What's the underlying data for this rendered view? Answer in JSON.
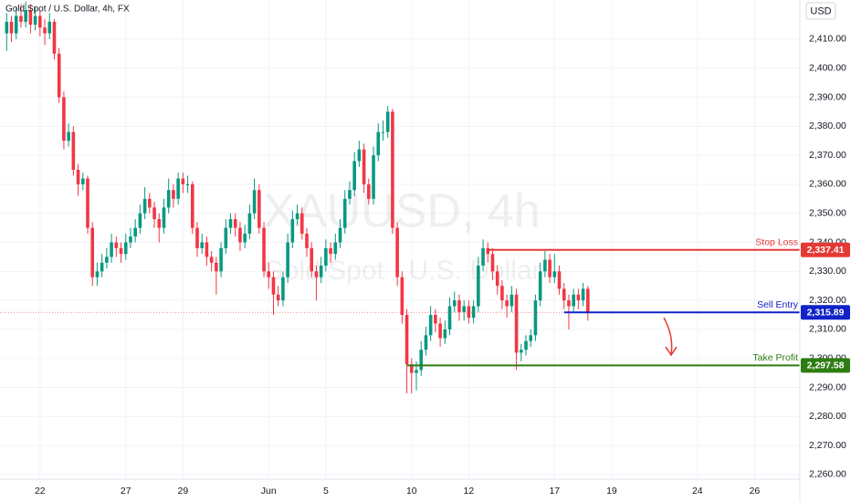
{
  "chart_data": {
    "type": "candlestick",
    "title": "Gold Spot / U.S. Dollar, 4h, FX",
    "currency": "USD",
    "watermark": "XAUUSD, 4h",
    "watermark_subtitle": "Gold Spot · U.S. Dollar",
    "up_color": "#089981",
    "down_color": "#f23645",
    "ylim": [
      2258.4,
      2423.5
    ],
    "yticks": [
      {
        "value": 2260,
        "label": "2,260.00"
      },
      {
        "value": 2270,
        "label": "2,270.00"
      },
      {
        "value": 2280,
        "label": "2,280.00"
      },
      {
        "value": 2290,
        "label": "2,290.00"
      },
      {
        "value": 2300,
        "label": "2,300.00"
      },
      {
        "value": 2310,
        "label": "2,310.00"
      },
      {
        "value": 2320,
        "label": "2,320.00"
      },
      {
        "value": 2330,
        "label": "2,330.00"
      },
      {
        "value": 2340,
        "label": "2,340.00"
      },
      {
        "value": 2350,
        "label": "2,350.00"
      },
      {
        "value": 2360,
        "label": "2,360.00"
      },
      {
        "value": 2370,
        "label": "2,370.00"
      },
      {
        "value": 2380,
        "label": "2,380.00"
      },
      {
        "value": 2390,
        "label": "2,390.00"
      },
      {
        "value": 2400,
        "label": "2,400.00"
      },
      {
        "value": 2410,
        "label": "2,410.00"
      }
    ],
    "xlim": [
      -1.4,
      166.5
    ],
    "xticks": [
      {
        "value": 7,
        "label": "22"
      },
      {
        "value": 25,
        "label": "27"
      },
      {
        "value": 37,
        "label": "29"
      },
      {
        "value": 55,
        "label": "Jun"
      },
      {
        "value": 67,
        "label": "5"
      },
      {
        "value": 85,
        "label": "10"
      },
      {
        "value": 97,
        "label": "12"
      },
      {
        "value": 115,
        "label": "17"
      },
      {
        "value": 127,
        "label": "19"
      },
      {
        "value": 145,
        "label": "24"
      },
      {
        "value": 157,
        "label": "26"
      }
    ],
    "levels": [
      {
        "name": "Stop Loss",
        "value": 2337.41,
        "value_label": "2,337.41",
        "color": "#e53935"
      },
      {
        "name": "Sell Entry",
        "value": 2315.89,
        "value_label": "2,315.89",
        "color": "#1022c8"
      },
      {
        "name": "Take Profit",
        "value": 2297.58,
        "value_label": "2,297.58",
        "color": "#2e7d12"
      }
    ],
    "ohlc": [
      [
        2412,
        2419,
        2406,
        2416
      ],
      [
        2416,
        2418,
        2409,
        2412
      ],
      [
        2412,
        2421,
        2410,
        2418
      ],
      [
        2418,
        2422,
        2414,
        2416
      ],
      [
        2416,
        2423,
        2414,
        2420
      ],
      [
        2420,
        2422,
        2412,
        2415
      ],
      [
        2415,
        2421,
        2413,
        2418
      ],
      [
        2418,
        2420,
        2411,
        2414
      ],
      [
        2414,
        2417,
        2408,
        2412
      ],
      [
        2412,
        2419,
        2410,
        2416
      ],
      [
        2416,
        2417,
        2403,
        2405
      ],
      [
        2405,
        2407,
        2388,
        2390
      ],
      [
        2390,
        2392,
        2372,
        2375
      ],
      [
        2375,
        2381,
        2373,
        2378
      ],
      [
        2378,
        2380,
        2363,
        2365
      ],
      [
        2365,
        2367,
        2356,
        2360
      ],
      [
        2360,
        2364,
        2358,
        2362
      ],
      [
        2362,
        2363,
        2343,
        2345
      ],
      [
        2345,
        2347,
        2325,
        2328
      ],
      [
        2328,
        2333,
        2325,
        2330
      ],
      [
        2330,
        2336,
        2328,
        2333
      ],
      [
        2333,
        2338,
        2331,
        2335
      ],
      [
        2335,
        2343,
        2333,
        2340
      ],
      [
        2340,
        2342,
        2335,
        2338
      ],
      [
        2338,
        2340,
        2333,
        2336
      ],
      [
        2336,
        2343,
        2334,
        2340
      ],
      [
        2340,
        2345,
        2338,
        2342
      ],
      [
        2342,
        2348,
        2340,
        2345
      ],
      [
        2345,
        2353,
        2343,
        2350
      ],
      [
        2350,
        2359,
        2348,
        2355
      ],
      [
        2355,
        2357,
        2350,
        2352
      ],
      [
        2352,
        2354,
        2345,
        2348
      ],
      [
        2348,
        2350,
        2340,
        2345
      ],
      [
        2345,
        2355,
        2343,
        2352
      ],
      [
        2352,
        2362,
        2350,
        2358
      ],
      [
        2358,
        2360,
        2352,
        2355
      ],
      [
        2355,
        2364,
        2353,
        2362
      ],
      [
        2362,
        2364,
        2357,
        2360
      ],
      [
        2360,
        2363,
        2357,
        2360
      ],
      [
        2360,
        2361,
        2343,
        2345
      ],
      [
        2345,
        2347,
        2335,
        2338
      ],
      [
        2338,
        2343,
        2336,
        2340
      ],
      [
        2340,
        2342,
        2332,
        2335
      ],
      [
        2335,
        2337,
        2330,
        2333
      ],
      [
        2333,
        2335,
        2322,
        2330
      ],
      [
        2330,
        2340,
        2328,
        2338
      ],
      [
        2338,
        2348,
        2336,
        2345
      ],
      [
        2345,
        2350,
        2343,
        2348
      ],
      [
        2348,
        2350,
        2342,
        2345
      ],
      [
        2345,
        2347,
        2337,
        2340
      ],
      [
        2340,
        2346,
        2338,
        2343
      ],
      [
        2343,
        2353,
        2341,
        2350
      ],
      [
        2350,
        2362,
        2348,
        2358
      ],
      [
        2358,
        2360,
        2343,
        2345
      ],
      [
        2345,
        2347,
        2328,
        2330
      ],
      [
        2330,
        2333,
        2324,
        2328
      ],
      [
        2328,
        2330,
        2315,
        2322
      ],
      [
        2322,
        2325,
        2318,
        2320
      ],
      [
        2320,
        2330,
        2318,
        2328
      ],
      [
        2328,
        2343,
        2326,
        2340
      ],
      [
        2340,
        2351,
        2338,
        2348
      ],
      [
        2348,
        2353,
        2346,
        2350
      ],
      [
        2350,
        2352,
        2341,
        2343
      ],
      [
        2343,
        2345,
        2335,
        2338
      ],
      [
        2338,
        2340,
        2328,
        2330
      ],
      [
        2330,
        2332,
        2320,
        2328
      ],
      [
        2328,
        2335,
        2326,
        2332
      ],
      [
        2332,
        2341,
        2330,
        2338
      ],
      [
        2338,
        2340,
        2333,
        2336
      ],
      [
        2336,
        2343,
        2334,
        2340
      ],
      [
        2340,
        2348,
        2338,
        2345
      ],
      [
        2345,
        2358,
        2343,
        2355
      ],
      [
        2355,
        2361,
        2353,
        2358
      ],
      [
        2358,
        2371,
        2356,
        2368
      ],
      [
        2368,
        2375,
        2366,
        2372
      ],
      [
        2372,
        2374,
        2357,
        2360
      ],
      [
        2360,
        2362,
        2353,
        2355
      ],
      [
        2355,
        2373,
        2353,
        2370
      ],
      [
        2370,
        2381,
        2368,
        2378
      ],
      [
        2378,
        2382,
        2375,
        2378
      ],
      [
        2378,
        2387,
        2376,
        2385
      ],
      [
        2385,
        2386,
        2343,
        2345
      ],
      [
        2345,
        2347,
        2325,
        2328
      ],
      [
        2328,
        2330,
        2312,
        2315
      ],
      [
        2315,
        2317,
        2288,
        2298
      ],
      [
        2298,
        2300,
        2288,
        2295
      ],
      [
        2295,
        2299,
        2289,
        2296
      ],
      [
        2296,
        2306,
        2294,
        2303
      ],
      [
        2303,
        2311,
        2301,
        2308
      ],
      [
        2308,
        2318,
        2306,
        2315
      ],
      [
        2315,
        2317,
        2309,
        2312
      ],
      [
        2312,
        2314,
        2304,
        2307
      ],
      [
        2307,
        2313,
        2305,
        2310
      ],
      [
        2310,
        2321,
        2308,
        2318
      ],
      [
        2318,
        2323,
        2316,
        2320
      ],
      [
        2320,
        2322,
        2313,
        2316
      ],
      [
        2316,
        2320,
        2313,
        2318
      ],
      [
        2318,
        2320,
        2312,
        2314
      ],
      [
        2314,
        2320,
        2312,
        2318
      ],
      [
        2318,
        2335,
        2316,
        2332
      ],
      [
        2332,
        2341,
        2330,
        2338
      ],
      [
        2338,
        2340,
        2333,
        2336
      ],
      [
        2336,
        2338,
        2327,
        2330
      ],
      [
        2330,
        2332,
        2322,
        2325
      ],
      [
        2325,
        2327,
        2317,
        2320
      ],
      [
        2320,
        2322,
        2314,
        2318
      ],
      [
        2318,
        2325,
        2316,
        2322
      ],
      [
        2322,
        2324,
        2296,
        2302
      ],
      [
        2302,
        2305,
        2299,
        2303
      ],
      [
        2303,
        2308,
        2301,
        2306
      ],
      [
        2306,
        2310,
        2304,
        2308
      ],
      [
        2308,
        2322,
        2306,
        2320
      ],
      [
        2320,
        2333,
        2318,
        2330
      ],
      [
        2330,
        2337,
        2328,
        2334
      ],
      [
        2334,
        2336,
        2326,
        2328
      ],
      [
        2328,
        2336,
        2326,
        2330
      ],
      [
        2330,
        2332,
        2322,
        2324
      ],
      [
        2324,
        2326,
        2317,
        2320
      ],
      [
        2320,
        2322,
        2310,
        2318
      ],
      [
        2318,
        2324,
        2316,
        2322
      ],
      [
        2322,
        2324,
        2317,
        2320
      ],
      [
        2320,
        2326,
        2318,
        2324
      ],
      [
        2324,
        2325,
        2313,
        2315.89
      ]
    ]
  }
}
